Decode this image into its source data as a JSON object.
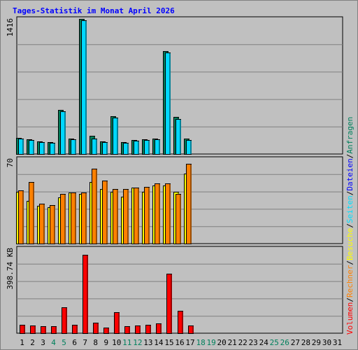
{
  "chart_data": {
    "type": "bar",
    "title": "Tages-Statistik im Monat April 2026",
    "colors": {
      "background": "#c0c0c0",
      "title": "#0000ff",
      "anfragen": "#00805c",
      "dateien": "#00d8ff",
      "seiten": "#00e0ff",
      "besuche": "#ffff00",
      "rechner": "#ff8000",
      "volumen": "#ff0000",
      "weekend_label": "#00805c",
      "separator": "#000000"
    },
    "days": [
      "1",
      "2",
      "3",
      "4",
      "5",
      "6",
      "7",
      "8",
      "9",
      "10",
      "11",
      "12",
      "13",
      "14",
      "15",
      "16",
      "17",
      "18",
      "19",
      "20",
      "21",
      "22",
      "23",
      "24",
      "25",
      "26",
      "27",
      "28",
      "29",
      "30",
      "31"
    ],
    "weekend_days": [
      4,
      5,
      11,
      12,
      18,
      19,
      25,
      26
    ],
    "panels": [
      {
        "id": "requests",
        "ymax_label": "1416",
        "ymax": 1416,
        "series": [
          {
            "name": "Anfragen",
            "values": [
              168,
              152,
              130,
              122,
              460,
              162,
              1416,
              192,
              134,
              394,
              128,
              146,
              152,
              160,
              1082,
              386,
              158
            ]
          },
          {
            "name": "Dateien",
            "values": [
              162,
              148,
              124,
              116,
              448,
              156,
              1398,
              160,
              122,
              380,
              118,
              140,
              148,
              156,
              1066,
              366,
              146
            ]
          }
        ]
      },
      {
        "id": "visits",
        "ymax_label": "70",
        "ymax": 70,
        "series": [
          {
            "name": "Besuche",
            "values": [
              43,
              35,
              31,
              30,
              38,
              42,
              41,
              51,
              45,
              43,
              39,
              46,
              43,
              48,
              48,
              43,
              58
            ]
          },
          {
            "name": "Rechner",
            "values": [
              44,
              51,
              33,
              32,
              41,
              42,
              42,
              62,
              52,
              45,
              45,
              46,
              47,
              50,
              50,
              41,
              66
            ]
          }
        ]
      },
      {
        "id": "volume",
        "ymax_label": "398.74 KB",
        "ymax": 398.74,
        "series": [
          {
            "name": "Volumen",
            "values": [
              40,
              36,
              33,
              33,
              122,
              40,
              370,
              48,
              28,
              100,
              33,
              36,
              40,
              46,
              280,
              105,
              36
            ]
          }
        ]
      }
    ],
    "legend": [
      {
        "text": "Volumen",
        "color": "#ff0000"
      },
      {
        "text": "/",
        "color": "#000000"
      },
      {
        "text": "Rechner",
        "color": "#ff8000"
      },
      {
        "text": "/",
        "color": "#000000"
      },
      {
        "text": "Besuche",
        "color": "#ffff00"
      },
      {
        "text": "/",
        "color": "#000000"
      },
      {
        "text": "Seiten",
        "color": "#00e0ff"
      },
      {
        "text": "/",
        "color": "#000000"
      },
      {
        "text": "Dateien",
        "color": "#0000ff"
      },
      {
        "text": "/",
        "color": "#000000"
      },
      {
        "text": "Anfragen",
        "color": "#00805c"
      }
    ]
  }
}
